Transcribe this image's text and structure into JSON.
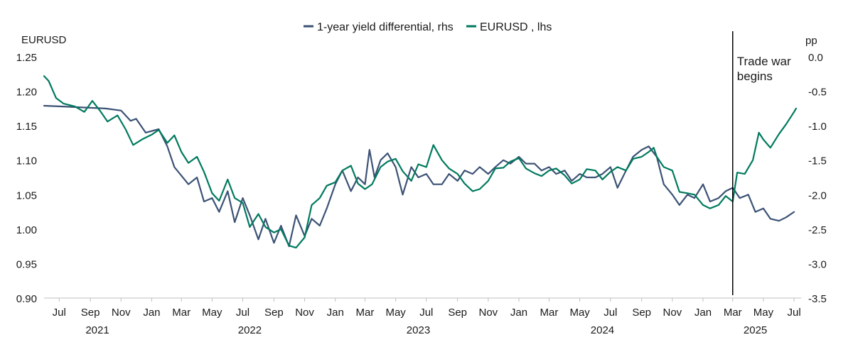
{
  "chart_data": {
    "type": "line",
    "title": "",
    "legend": {
      "placement": "top-center",
      "entries": [
        "1-year yield differential, rhs",
        "EURUSD , lhs"
      ]
    },
    "left_axis": {
      "label": "EURUSD",
      "ylim": [
        0.9,
        1.25
      ],
      "ticks": [
        "1.25",
        "1.20",
        "1.15",
        "1.10",
        "1.05",
        "1.00",
        "0.95",
        "0.90"
      ],
      "tick_values": [
        1.25,
        1.2,
        1.15,
        1.1,
        1.05,
        1.0,
        0.95,
        0.9
      ]
    },
    "right_axis": {
      "label": "pp",
      "ylim": [
        -3.5,
        0.0
      ],
      "ticks": [
        "0.0",
        "-0.5",
        "-1.0",
        "-1.5",
        "-2.0",
        "-2.5",
        "-3.0",
        "-3.5"
      ],
      "tick_values": [
        0.0,
        -0.5,
        -1.0,
        -1.5,
        -2.0,
        -2.5,
        -3.0,
        -3.5
      ]
    },
    "x_axis": {
      "range": [
        "2021-06-01",
        "2025-07-15"
      ],
      "month_ticks": [
        {
          "label": "Jul",
          "date": "2021-07-01"
        },
        {
          "label": "Sep",
          "date": "2021-09-01"
        },
        {
          "label": "Nov",
          "date": "2021-11-01"
        },
        {
          "label": "Jan",
          "date": "2022-01-01"
        },
        {
          "label": "Mar",
          "date": "2022-03-01"
        },
        {
          "label": "May",
          "date": "2022-05-01"
        },
        {
          "label": "Jul",
          "date": "2022-07-01"
        },
        {
          "label": "Sep",
          "date": "2022-09-01"
        },
        {
          "label": "Nov",
          "date": "2022-11-01"
        },
        {
          "label": "Jan",
          "date": "2023-01-01"
        },
        {
          "label": "Mar",
          "date": "2023-03-01"
        },
        {
          "label": "May",
          "date": "2023-05-01"
        },
        {
          "label": "Jul",
          "date": "2023-07-01"
        },
        {
          "label": "Sep",
          "date": "2023-09-01"
        },
        {
          "label": "Nov",
          "date": "2023-11-01"
        },
        {
          "label": "Jan",
          "date": "2024-01-01"
        },
        {
          "label": "Mar",
          "date": "2024-03-01"
        },
        {
          "label": "May",
          "date": "2024-05-01"
        },
        {
          "label": "Jul",
          "date": "2024-07-01"
        },
        {
          "label": "Sep",
          "date": "2024-09-01"
        },
        {
          "label": "Nov",
          "date": "2024-11-01"
        },
        {
          "label": "Jan",
          "date": "2025-01-01"
        },
        {
          "label": "Mar",
          "date": "2025-03-01"
        },
        {
          "label": "May",
          "date": "2025-05-01"
        },
        {
          "label": "Jul",
          "date": "2025-07-01"
        }
      ],
      "year_labels": [
        {
          "label": "2021",
          "date": "2021-09-15"
        },
        {
          "label": "2022",
          "date": "2022-07-15"
        },
        {
          "label": "2023",
          "date": "2023-06-15"
        },
        {
          "label": "2024",
          "date": "2024-06-15"
        },
        {
          "label": "2025",
          "date": "2025-04-15"
        }
      ]
    },
    "annotation": {
      "text_lines": [
        "Trade war",
        "begins"
      ],
      "date": "2025-03-01"
    },
    "series": [
      {
        "name": "1-year yield differential, rhs",
        "axis": "right",
        "color": "#3c5275",
        "points": [
          [
            "2021-06-01",
            -0.71
          ],
          [
            "2021-07-01",
            -0.72
          ],
          [
            "2021-08-01",
            -0.73
          ],
          [
            "2021-09-01",
            -0.74
          ],
          [
            "2021-10-01",
            -0.75
          ],
          [
            "2021-11-01",
            -0.78
          ],
          [
            "2021-11-20",
            -0.93
          ],
          [
            "2021-12-01",
            -0.9
          ],
          [
            "2021-12-20",
            -1.1
          ],
          [
            "2022-01-15",
            -1.05
          ],
          [
            "2022-02-01",
            -1.3
          ],
          [
            "2022-02-15",
            -1.6
          ],
          [
            "2022-03-15",
            -1.85
          ],
          [
            "2022-04-01",
            -1.75
          ],
          [
            "2022-04-15",
            -2.1
          ],
          [
            "2022-05-01",
            -2.05
          ],
          [
            "2022-05-15",
            -2.25
          ],
          [
            "2022-06-01",
            -1.95
          ],
          [
            "2022-06-15",
            -2.4
          ],
          [
            "2022-07-01",
            -2.05
          ],
          [
            "2022-07-15",
            -2.3
          ],
          [
            "2022-08-01",
            -2.65
          ],
          [
            "2022-08-15",
            -2.35
          ],
          [
            "2022-09-01",
            -2.7
          ],
          [
            "2022-09-15",
            -2.45
          ],
          [
            "2022-10-01",
            -2.75
          ],
          [
            "2022-10-15",
            -2.3
          ],
          [
            "2022-11-01",
            -2.6
          ],
          [
            "2022-11-15",
            -2.35
          ],
          [
            "2022-12-01",
            -2.45
          ],
          [
            "2022-12-15",
            -2.2
          ],
          [
            "2023-01-01",
            -1.85
          ],
          [
            "2023-01-15",
            -1.65
          ],
          [
            "2023-02-01",
            -1.95
          ],
          [
            "2023-02-15",
            -1.75
          ],
          [
            "2023-03-01",
            -1.85
          ],
          [
            "2023-03-10",
            -1.35
          ],
          [
            "2023-03-20",
            -1.75
          ],
          [
            "2023-04-01",
            -1.5
          ],
          [
            "2023-04-15",
            -1.4
          ],
          [
            "2023-05-01",
            -1.6
          ],
          [
            "2023-05-15",
            -2.0
          ],
          [
            "2023-06-01",
            -1.6
          ],
          [
            "2023-06-15",
            -1.75
          ],
          [
            "2023-07-01",
            -1.7
          ],
          [
            "2023-07-15",
            -1.85
          ],
          [
            "2023-08-01",
            -1.85
          ],
          [
            "2023-08-15",
            -1.7
          ],
          [
            "2023-09-01",
            -1.8
          ],
          [
            "2023-09-15",
            -1.65
          ],
          [
            "2023-10-01",
            -1.7
          ],
          [
            "2023-10-15",
            -1.6
          ],
          [
            "2023-11-01",
            -1.7
          ],
          [
            "2023-11-15",
            -1.6
          ],
          [
            "2023-12-01",
            -1.5
          ],
          [
            "2023-12-15",
            -1.55
          ],
          [
            "2024-01-01",
            -1.45
          ],
          [
            "2024-01-15",
            -1.55
          ],
          [
            "2024-02-01",
            -1.55
          ],
          [
            "2024-02-15",
            -1.65
          ],
          [
            "2024-03-01",
            -1.6
          ],
          [
            "2024-03-15",
            -1.7
          ],
          [
            "2024-04-01",
            -1.65
          ],
          [
            "2024-04-15",
            -1.8
          ],
          [
            "2024-05-01",
            -1.7
          ],
          [
            "2024-05-15",
            -1.75
          ],
          [
            "2024-06-01",
            -1.75
          ],
          [
            "2024-06-15",
            -1.7
          ],
          [
            "2024-07-01",
            -1.6
          ],
          [
            "2024-07-15",
            -1.9
          ],
          [
            "2024-08-01",
            -1.65
          ],
          [
            "2024-08-15",
            -1.45
          ],
          [
            "2024-09-01",
            -1.35
          ],
          [
            "2024-09-15",
            -1.3
          ],
          [
            "2024-10-01",
            -1.45
          ],
          [
            "2024-10-15",
            -1.85
          ],
          [
            "2024-11-01",
            -2.0
          ],
          [
            "2024-11-15",
            -2.15
          ],
          [
            "2024-12-01",
            -2.0
          ],
          [
            "2024-12-15",
            -2.05
          ],
          [
            "2025-01-01",
            -1.85
          ],
          [
            "2025-01-15",
            -2.1
          ],
          [
            "2025-02-01",
            -2.05
          ],
          [
            "2025-02-15",
            -1.95
          ],
          [
            "2025-03-01",
            -1.9
          ],
          [
            "2025-03-15",
            -2.05
          ],
          [
            "2025-04-01",
            -2.0
          ],
          [
            "2025-04-15",
            -2.25
          ],
          [
            "2025-05-01",
            -2.2
          ],
          [
            "2025-05-15",
            -2.35
          ],
          [
            "2025-06-01",
            -2.38
          ],
          [
            "2025-06-15",
            -2.33
          ],
          [
            "2025-07-01",
            -2.25
          ]
        ]
      },
      {
        "name": "EURUSD , lhs",
        "axis": "left",
        "color": "#007a5e",
        "points": [
          [
            "2021-06-01",
            1.222
          ],
          [
            "2021-06-10",
            1.215
          ],
          [
            "2021-06-25",
            1.19
          ],
          [
            "2021-07-10",
            1.182
          ],
          [
            "2021-08-01",
            1.178
          ],
          [
            "2021-08-20",
            1.17
          ],
          [
            "2021-09-05",
            1.186
          ],
          [
            "2021-09-20",
            1.172
          ],
          [
            "2021-10-05",
            1.156
          ],
          [
            "2021-10-25",
            1.165
          ],
          [
            "2021-11-10",
            1.145
          ],
          [
            "2021-11-25",
            1.122
          ],
          [
            "2021-12-15",
            1.131
          ],
          [
            "2022-01-01",
            1.137
          ],
          [
            "2022-01-15",
            1.144
          ],
          [
            "2022-02-01",
            1.125
          ],
          [
            "2022-02-15",
            1.136
          ],
          [
            "2022-03-01",
            1.112
          ],
          [
            "2022-03-15",
            1.096
          ],
          [
            "2022-04-01",
            1.105
          ],
          [
            "2022-04-15",
            1.083
          ],
          [
            "2022-05-01",
            1.052
          ],
          [
            "2022-05-15",
            1.041
          ],
          [
            "2022-06-01",
            1.072
          ],
          [
            "2022-06-15",
            1.045
          ],
          [
            "2022-07-01",
            1.038
          ],
          [
            "2022-07-15",
            1.003
          ],
          [
            "2022-08-01",
            1.022
          ],
          [
            "2022-08-15",
            1.003
          ],
          [
            "2022-09-01",
            0.995
          ],
          [
            "2022-09-15",
            1.0
          ],
          [
            "2022-10-01",
            0.976
          ],
          [
            "2022-10-15",
            0.973
          ],
          [
            "2022-11-01",
            0.988
          ],
          [
            "2022-11-15",
            1.035
          ],
          [
            "2022-12-01",
            1.045
          ],
          [
            "2022-12-15",
            1.063
          ],
          [
            "2023-01-01",
            1.068
          ],
          [
            "2023-01-15",
            1.085
          ],
          [
            "2023-02-01",
            1.092
          ],
          [
            "2023-02-15",
            1.066
          ],
          [
            "2023-03-01",
            1.058
          ],
          [
            "2023-03-15",
            1.065
          ],
          [
            "2023-04-01",
            1.09
          ],
          [
            "2023-04-15",
            1.098
          ],
          [
            "2023-05-01",
            1.102
          ],
          [
            "2023-05-15",
            1.084
          ],
          [
            "2023-06-01",
            1.07
          ],
          [
            "2023-06-15",
            1.094
          ],
          [
            "2023-07-01",
            1.09
          ],
          [
            "2023-07-15",
            1.122
          ],
          [
            "2023-08-01",
            1.1
          ],
          [
            "2023-08-15",
            1.088
          ],
          [
            "2023-09-01",
            1.08
          ],
          [
            "2023-09-15",
            1.066
          ],
          [
            "2023-10-01",
            1.055
          ],
          [
            "2023-10-15",
            1.058
          ],
          [
            "2023-11-01",
            1.07
          ],
          [
            "2023-11-15",
            1.088
          ],
          [
            "2023-12-01",
            1.089
          ],
          [
            "2023-12-15",
            1.098
          ],
          [
            "2024-01-01",
            1.103
          ],
          [
            "2024-01-15",
            1.088
          ],
          [
            "2024-02-01",
            1.081
          ],
          [
            "2024-02-15",
            1.077
          ],
          [
            "2024-03-01",
            1.085
          ],
          [
            "2024-03-15",
            1.088
          ],
          [
            "2024-04-01",
            1.078
          ],
          [
            "2024-04-15",
            1.066
          ],
          [
            "2024-05-01",
            1.072
          ],
          [
            "2024-05-15",
            1.087
          ],
          [
            "2024-06-01",
            1.085
          ],
          [
            "2024-06-15",
            1.072
          ],
          [
            "2024-07-01",
            1.083
          ],
          [
            "2024-07-15",
            1.09
          ],
          [
            "2024-08-01",
            1.085
          ],
          [
            "2024-08-15",
            1.102
          ],
          [
            "2024-09-01",
            1.105
          ],
          [
            "2024-09-15",
            1.112
          ],
          [
            "2024-09-25",
            1.118
          ],
          [
            "2024-10-01",
            1.105
          ],
          [
            "2024-10-15",
            1.09
          ],
          [
            "2024-11-01",
            1.085
          ],
          [
            "2024-11-15",
            1.054
          ],
          [
            "2024-12-01",
            1.052
          ],
          [
            "2024-12-15",
            1.05
          ],
          [
            "2025-01-01",
            1.035
          ],
          [
            "2025-01-15",
            1.03
          ],
          [
            "2025-02-01",
            1.035
          ],
          [
            "2025-02-15",
            1.048
          ],
          [
            "2025-03-01",
            1.04
          ],
          [
            "2025-03-10",
            1.082
          ],
          [
            "2025-03-25",
            1.08
          ],
          [
            "2025-04-10",
            1.1
          ],
          [
            "2025-04-22",
            1.14
          ],
          [
            "2025-05-01",
            1.13
          ],
          [
            "2025-05-15",
            1.118
          ],
          [
            "2025-06-01",
            1.138
          ],
          [
            "2025-06-15",
            1.152
          ],
          [
            "2025-07-01",
            1.17
          ],
          [
            "2025-07-05",
            1.175
          ]
        ]
      }
    ]
  }
}
